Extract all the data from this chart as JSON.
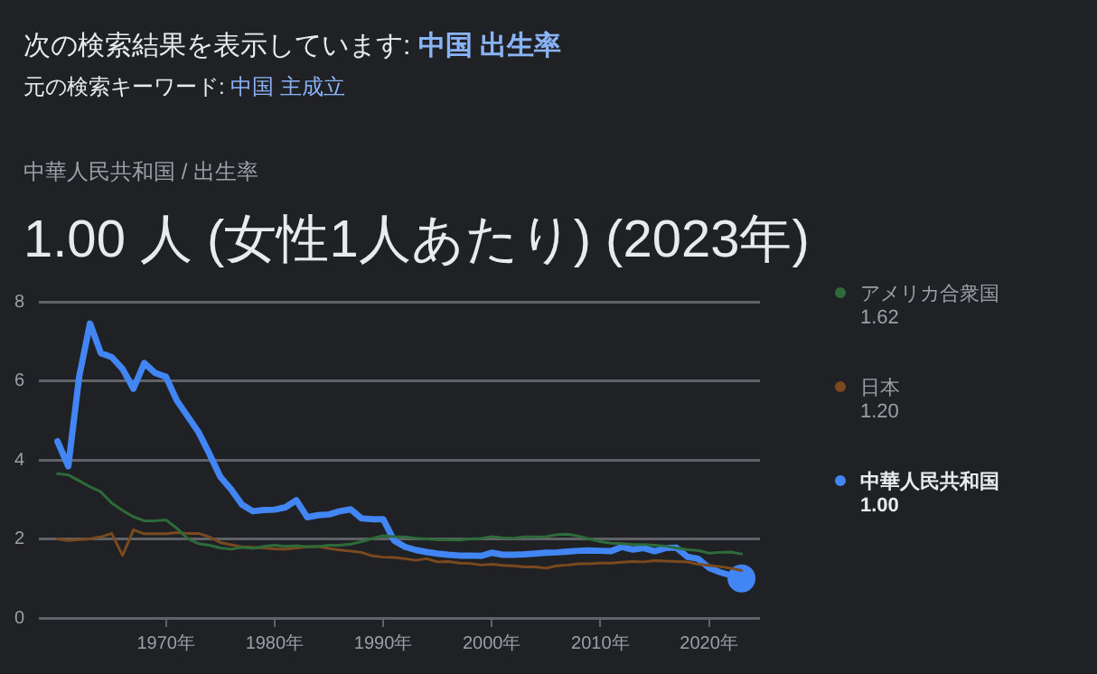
{
  "chart_data": {
    "type": "line",
    "title": "1.00 人 (女性1人あたり) (2023年)",
    "subtitle": "中華人民共和国 / 出生率",
    "annotations": [
      "次の検索結果を表示しています:",
      "中国 出生率",
      "元の検索キーワード:",
      "中国 主成立",
      "1.62",
      "1.20",
      "1.00"
    ],
    "x": [
      1960,
      1961,
      1962,
      1963,
      1964,
      1965,
      1966,
      1967,
      1968,
      1969,
      1970,
      1971,
      1972,
      1973,
      1974,
      1975,
      1976,
      1977,
      1978,
      1979,
      1980,
      1981,
      1982,
      1983,
      1984,
      1985,
      1986,
      1987,
      1988,
      1989,
      1990,
      1991,
      1992,
      1993,
      1994,
      1995,
      1996,
      1997,
      1998,
      1999,
      2000,
      2001,
      2002,
      2003,
      2004,
      2005,
      2006,
      2007,
      2008,
      2009,
      2010,
      2011,
      2012,
      2013,
      2014,
      2015,
      2016,
      2017,
      2018,
      2019,
      2020,
      2021,
      2022,
      2023
    ],
    "series": [
      {
        "name": "アメリカ合衆国",
        "color": "#2e6b3a",
        "values": [
          3.65,
          3.62,
          3.47,
          3.32,
          3.19,
          2.91,
          2.72,
          2.56,
          2.46,
          2.46,
          2.48,
          2.27,
          2.01,
          1.88,
          1.84,
          1.77,
          1.74,
          1.79,
          1.76,
          1.81,
          1.84,
          1.81,
          1.83,
          1.8,
          1.81,
          1.84,
          1.84,
          1.87,
          1.93,
          2.01,
          2.08,
          2.06,
          2.05,
          2.02,
          2.0,
          1.98,
          1.98,
          1.97,
          2.0,
          2.01,
          2.06,
          2.03,
          2.02,
          2.05,
          2.05,
          2.06,
          2.11,
          2.12,
          2.07,
          2.0,
          1.93,
          1.89,
          1.88,
          1.86,
          1.86,
          1.84,
          1.82,
          1.77,
          1.73,
          1.71,
          1.64,
          1.66,
          1.67,
          1.62
        ]
      },
      {
        "name": "日本",
        "color": "#7a4a1e",
        "values": [
          2.0,
          1.96,
          1.98,
          2.0,
          2.05,
          2.14,
          1.58,
          2.23,
          2.13,
          2.13,
          2.13,
          2.16,
          2.14,
          2.14,
          2.05,
          1.91,
          1.85,
          1.8,
          1.79,
          1.77,
          1.75,
          1.74,
          1.77,
          1.8,
          1.81,
          1.76,
          1.72,
          1.69,
          1.66,
          1.57,
          1.54,
          1.53,
          1.5,
          1.46,
          1.5,
          1.42,
          1.43,
          1.39,
          1.38,
          1.34,
          1.36,
          1.33,
          1.32,
          1.29,
          1.29,
          1.26,
          1.32,
          1.34,
          1.37,
          1.37,
          1.39,
          1.39,
          1.41,
          1.43,
          1.42,
          1.45,
          1.44,
          1.43,
          1.42,
          1.36,
          1.33,
          1.3,
          1.26,
          1.2
        ]
      },
      {
        "name": "中華人民共和国",
        "color": "#4285f4",
        "values": [
          4.47,
          3.84,
          6.1,
          7.45,
          6.7,
          6.6,
          6.3,
          5.8,
          6.45,
          6.2,
          6.1,
          5.5,
          5.1,
          4.7,
          4.15,
          3.57,
          3.25,
          2.87,
          2.7,
          2.73,
          2.74,
          2.8,
          2.98,
          2.55,
          2.6,
          2.62,
          2.7,
          2.75,
          2.52,
          2.5,
          2.5,
          1.96,
          1.8,
          1.72,
          1.67,
          1.63,
          1.6,
          1.58,
          1.58,
          1.57,
          1.65,
          1.6,
          1.6,
          1.61,
          1.63,
          1.65,
          1.66,
          1.68,
          1.7,
          1.71,
          1.7,
          1.69,
          1.8,
          1.73,
          1.77,
          1.69,
          1.77,
          1.78,
          1.55,
          1.5,
          1.27,
          1.16,
          1.08,
          1.0
        ]
      }
    ],
    "xlim": [
      1958.3,
      2024.7
    ],
    "xticks": [
      {
        "value": 1970,
        "label": "1970年"
      },
      {
        "value": 1980,
        "label": "1980年"
      },
      {
        "value": 1990,
        "label": "1990年"
      },
      {
        "value": 2000,
        "label": "2000年"
      },
      {
        "value": 2010,
        "label": "2010年"
      },
      {
        "value": 2020,
        "label": "2020年"
      }
    ],
    "ylim": [
      0,
      8
    ],
    "yticks": [
      0,
      2,
      4,
      6,
      8
    ],
    "grid": "y",
    "legend": "right",
    "marker": "none",
    "line_style": "solid"
  }
}
